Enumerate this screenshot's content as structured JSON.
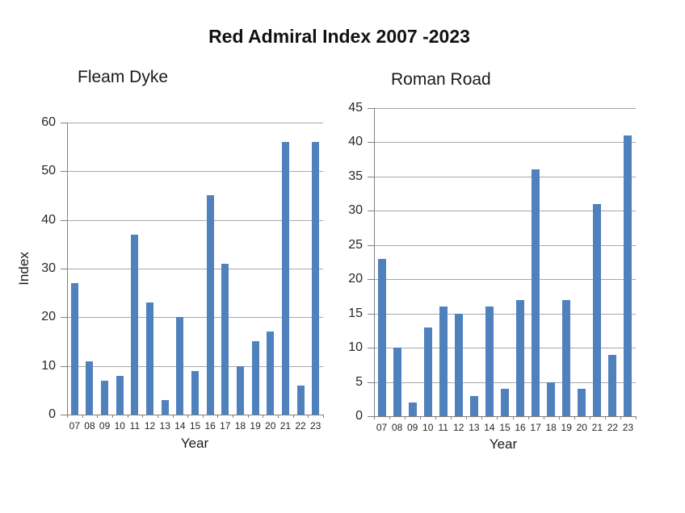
{
  "title": "Red Admiral Index 2007 -2023",
  "colors": {
    "bar": "#4f81bd",
    "axis": "#808080",
    "gridline": "#a8a8a8",
    "text": "#262626",
    "background": "#ffffff"
  },
  "chart_data": [
    {
      "type": "bar",
      "title": "Fleam Dyke",
      "xlabel": "Year",
      "ylabel": "Index",
      "categories": [
        "07",
        "08",
        "09",
        "10",
        "11",
        "12",
        "13",
        "14",
        "15",
        "16",
        "17",
        "18",
        "19",
        "20",
        "21",
        "22",
        "23"
      ],
      "values": [
        27,
        11,
        7,
        8,
        37,
        23,
        3,
        20,
        9,
        45,
        31,
        10,
        15,
        17,
        56,
        6,
        56
      ],
      "ylim": [
        0,
        60
      ],
      "ytick_step": 10,
      "grid": true,
      "legend": "none"
    },
    {
      "type": "bar",
      "title": "Roman Road",
      "xlabel": "Year",
      "ylabel": "",
      "categories": [
        "07",
        "08",
        "09",
        "10",
        "11",
        "12",
        "13",
        "14",
        "15",
        "16",
        "17",
        "18",
        "19",
        "20",
        "21",
        "22",
        "23"
      ],
      "values": [
        23,
        10,
        2,
        13,
        16,
        15,
        3,
        16,
        4,
        17,
        36,
        5,
        17,
        4,
        31,
        9,
        41
      ],
      "ylim": [
        0,
        45
      ],
      "ytick_step": 5,
      "grid": true,
      "legend": "none"
    }
  ]
}
